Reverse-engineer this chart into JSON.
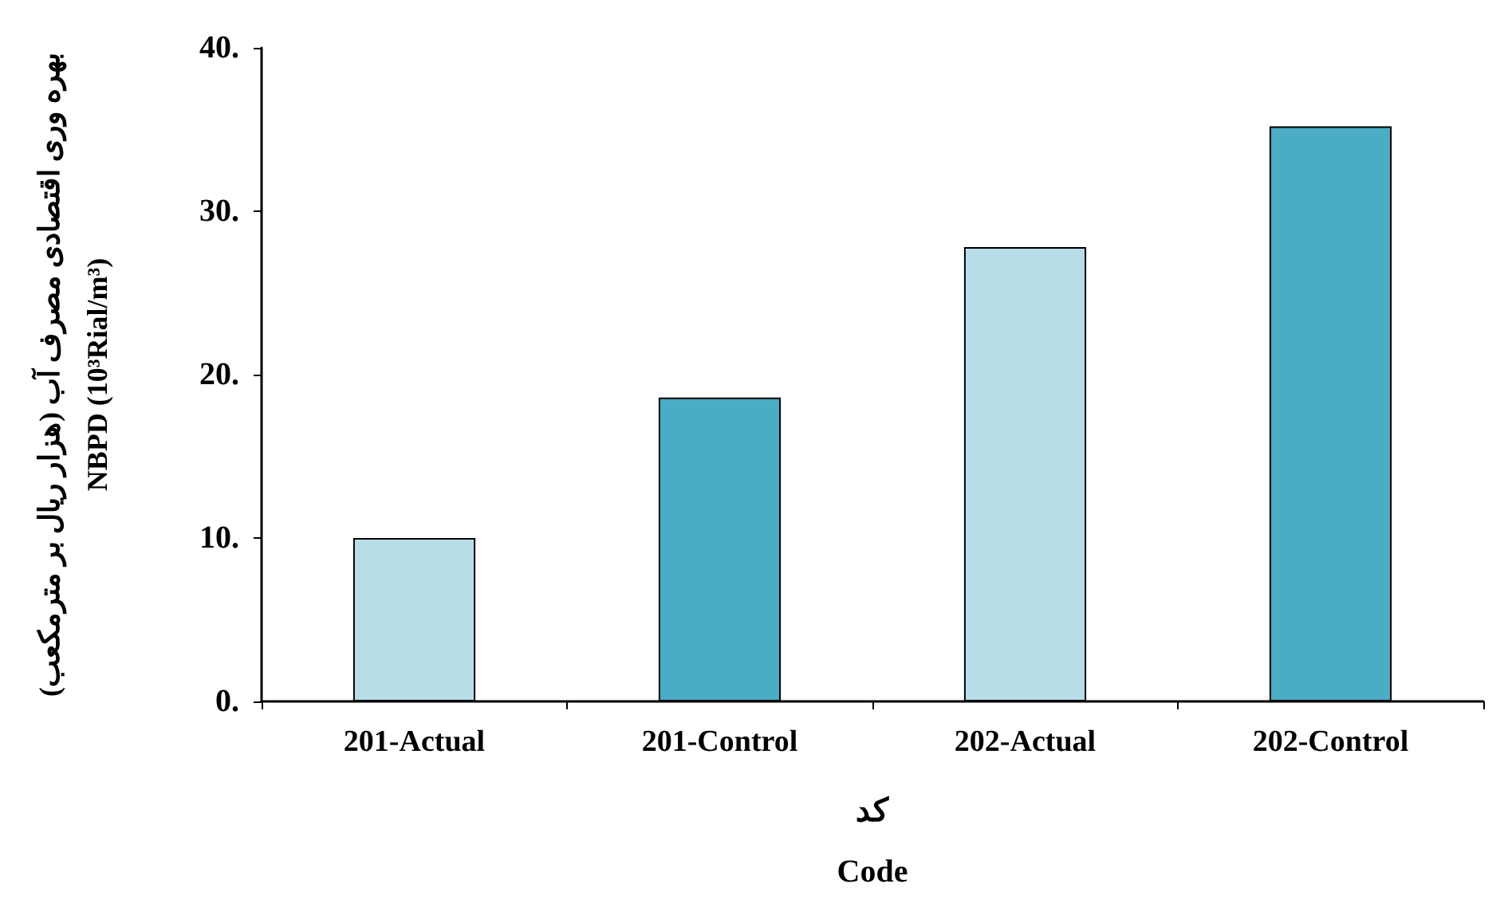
{
  "chart_data": {
    "type": "bar",
    "categories": [
      "201-Actual",
      "201-Control",
      "202-Actual",
      "202-Control"
    ],
    "values": [
      10.0,
      18.6,
      27.8,
      35.2
    ],
    "colors": [
      "#b7dde8",
      "#4bacc6",
      "#b7dde8",
      "#4bacc6"
    ],
    "xlabel": "کد\nCode",
    "ylabel": "بهره وری اقتصادی مصرف آب (هزار ریال بر مترمکعب)\nNBPD (10³Rial/m³)",
    "ylim": [
      0,
      40
    ],
    "yticks": [
      {
        "value": 0,
        "label": "0."
      },
      {
        "value": 10,
        "label": "10."
      },
      {
        "value": 20,
        "label": "20."
      },
      {
        "value": 30,
        "label": "30."
      },
      {
        "value": 40,
        "label": "40."
      }
    ],
    "grid": false
  }
}
